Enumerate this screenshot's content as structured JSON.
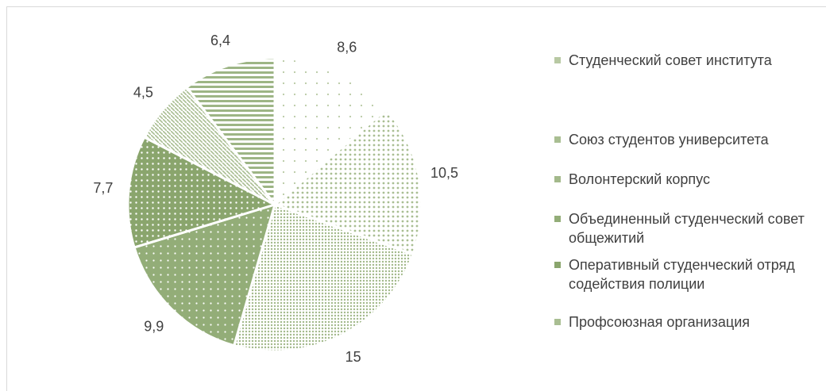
{
  "chart_data": {
    "type": "pie",
    "categories": [
      "Студенческий совет института",
      "Союз студентов университета",
      "Волонтерский корпус",
      "Объединенный студенческий совет общежитий",
      "Оперативный студенческий отряд содействия полиции",
      "Профсоюзная организация",
      null
    ],
    "values": [
      8.6,
      10.5,
      15,
      9.9,
      7.7,
      4.5,
      6.4
    ],
    "value_labels": [
      "8,6",
      "10,5",
      "15",
      "9,9",
      "7,7",
      "4,5",
      "6,4"
    ],
    "colors": [
      "#b8c9a3",
      "#a9be92",
      "#a3b98b",
      "#93ad78",
      "#8aa56d",
      "#a9be92",
      "#9db585"
    ]
  }
}
